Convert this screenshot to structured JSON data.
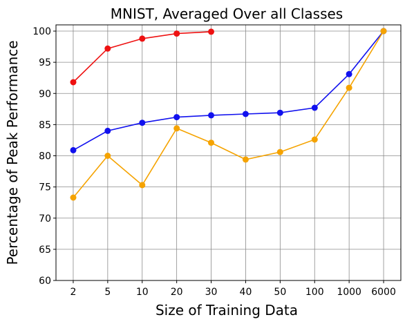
{
  "chart_data": {
    "type": "line",
    "title": "MNIST, Averaged Over all Classes",
    "xlabel": "Size of Training Data",
    "ylabel": "Percentage of Peak Performance",
    "categories": [
      "2",
      "5",
      "10",
      "20",
      "30",
      "40",
      "50",
      "100",
      "1000",
      "6000"
    ],
    "ylim": [
      60,
      101
    ],
    "yticks": [
      60,
      65,
      70,
      75,
      80,
      85,
      90,
      95,
      100
    ],
    "grid": true,
    "series": [
      {
        "color": "#ee1111",
        "values": [
          91.8,
          97.2,
          98.8,
          99.6,
          99.9,
          null,
          null,
          null,
          null,
          null
        ]
      },
      {
        "color": "#1111ee",
        "values": [
          80.9,
          84.0,
          85.3,
          86.2,
          86.5,
          86.7,
          86.9,
          87.7,
          93.1,
          100.0
        ]
      },
      {
        "color": "#f5a300",
        "values": [
          73.3,
          80.0,
          75.3,
          84.4,
          82.1,
          79.4,
          80.6,
          82.6,
          90.9,
          100.0
        ]
      }
    ]
  }
}
